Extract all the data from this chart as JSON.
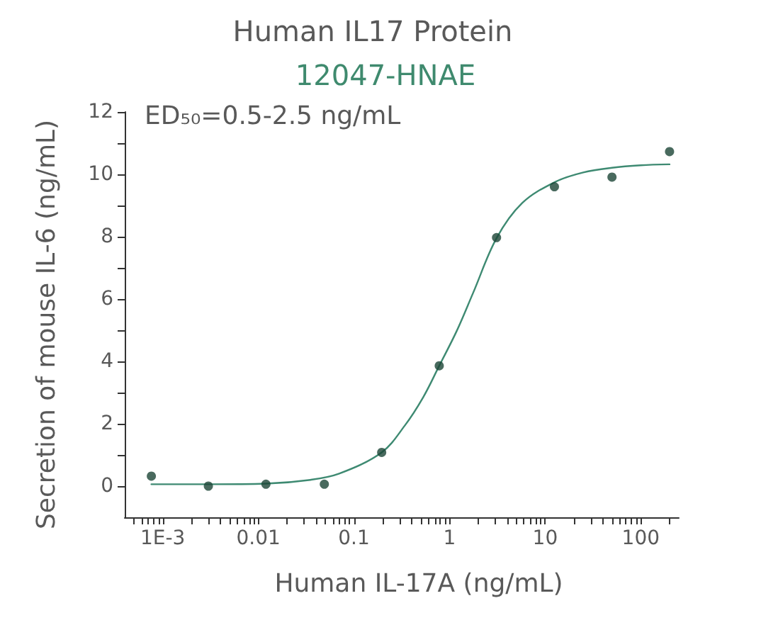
{
  "chart_data": {
    "type": "scatter",
    "title": "Human IL17 Protein",
    "subtitle": "12047-HNAE",
    "xlabel": "Human IL-17A (ng/mL)",
    "ylabel": "Secretion of mouse IL-6 (ng/mL)",
    "annotations": [
      "ED₅₀=0.5-2.5 ng/mL"
    ],
    "log": "x",
    "xlim": [
      0.0004,
      250
    ],
    "ylim": [
      -1,
      12
    ],
    "xticks": [
      {
        "value": 0.0005,
        "label": null
      },
      {
        "value": 0.0006,
        "label": null
      },
      {
        "value": 0.0007,
        "label": null
      },
      {
        "value": 0.0008,
        "label": null
      },
      {
        "value": 0.0009,
        "label": null
      },
      {
        "value": 0.001,
        "label": "1E-3"
      },
      {
        "value": 0.002,
        "label": null
      },
      {
        "value": 0.003,
        "label": null
      },
      {
        "value": 0.004,
        "label": null
      },
      {
        "value": 0.005,
        "label": null
      },
      {
        "value": 0.006,
        "label": null
      },
      {
        "value": 0.007,
        "label": null
      },
      {
        "value": 0.008,
        "label": null
      },
      {
        "value": 0.009,
        "label": null
      },
      0.01,
      {
        "value": 0.02,
        "label": null
      },
      {
        "value": 0.03,
        "label": null
      },
      {
        "value": 0.04,
        "label": null
      },
      {
        "value": 0.05,
        "label": null
      },
      {
        "value": 0.06,
        "label": null
      },
      {
        "value": 0.07,
        "label": null
      },
      {
        "value": 0.08,
        "label": null
      },
      {
        "value": 0.09,
        "label": null
      },
      0.1,
      {
        "value": 0.2,
        "label": null
      },
      {
        "value": 0.3,
        "label": null
      },
      {
        "value": 0.4,
        "label": null
      },
      {
        "value": 0.5,
        "label": null
      },
      {
        "value": 0.6,
        "label": null
      },
      {
        "value": 0.7,
        "label": null
      },
      {
        "value": 0.8,
        "label": null
      },
      {
        "value": 0.9,
        "label": null
      },
      1,
      {
        "value": 2,
        "label": null
      },
      {
        "value": 3,
        "label": null
      },
      {
        "value": 4,
        "label": null
      },
      {
        "value": 5,
        "label": null
      },
      {
        "value": 6,
        "label": null
      },
      {
        "value": 7,
        "label": null
      },
      {
        "value": 8,
        "label": null
      },
      {
        "value": 9,
        "label": null
      },
      10,
      {
        "value": 20,
        "label": null
      },
      {
        "value": 30,
        "label": null
      },
      {
        "value": 40,
        "label": null
      },
      {
        "value": 50,
        "label": null
      },
      {
        "value": 60,
        "label": null
      },
      {
        "value": 70,
        "label": null
      },
      {
        "value": 80,
        "label": null
      },
      {
        "value": 90,
        "label": null
      },
      100,
      {
        "value": 200,
        "label": null
      }
    ],
    "yticks": [
      0,
      {
        "value": 1,
        "label": null
      },
      2,
      {
        "value": 3,
        "label": null
      },
      4,
      {
        "value": 5,
        "label": null
      },
      6,
      {
        "value": 7,
        "label": null
      },
      8,
      {
        "value": 9,
        "label": null
      },
      10,
      {
        "value": 11,
        "label": null
      },
      12
    ],
    "series": [
      {
        "type": "line",
        "color": "#3e8a72",
        "marker": "none",
        "line_style": "solid",
        "x": [
          0.00076,
          0.003,
          0.012,
          0.035,
          0.07,
          0.195,
          0.34,
          0.53,
          0.78,
          1.19,
          1.76,
          3.1,
          5.76,
          12.8,
          25,
          50,
          100,
          200
        ],
        "values": [
          0.06,
          0.06,
          0.08,
          0.2,
          0.4,
          1.08,
          1.94,
          2.85,
          3.86,
          4.98,
          6.19,
          7.95,
          9.08,
          9.76,
          10.06,
          10.21,
          10.29,
          10.32
        ]
      },
      {
        "color": "#1b4536",
        "marker": "circle",
        "x": [
          0.00076,
          0.003,
          0.012,
          0.049,
          0.195,
          0.78,
          3.1,
          12.5,
          50,
          200
        ],
        "values": [
          0.32,
          0.0,
          0.06,
          0.06,
          1.08,
          3.86,
          7.97,
          9.6,
          9.91,
          10.73
        ]
      }
    ]
  }
}
